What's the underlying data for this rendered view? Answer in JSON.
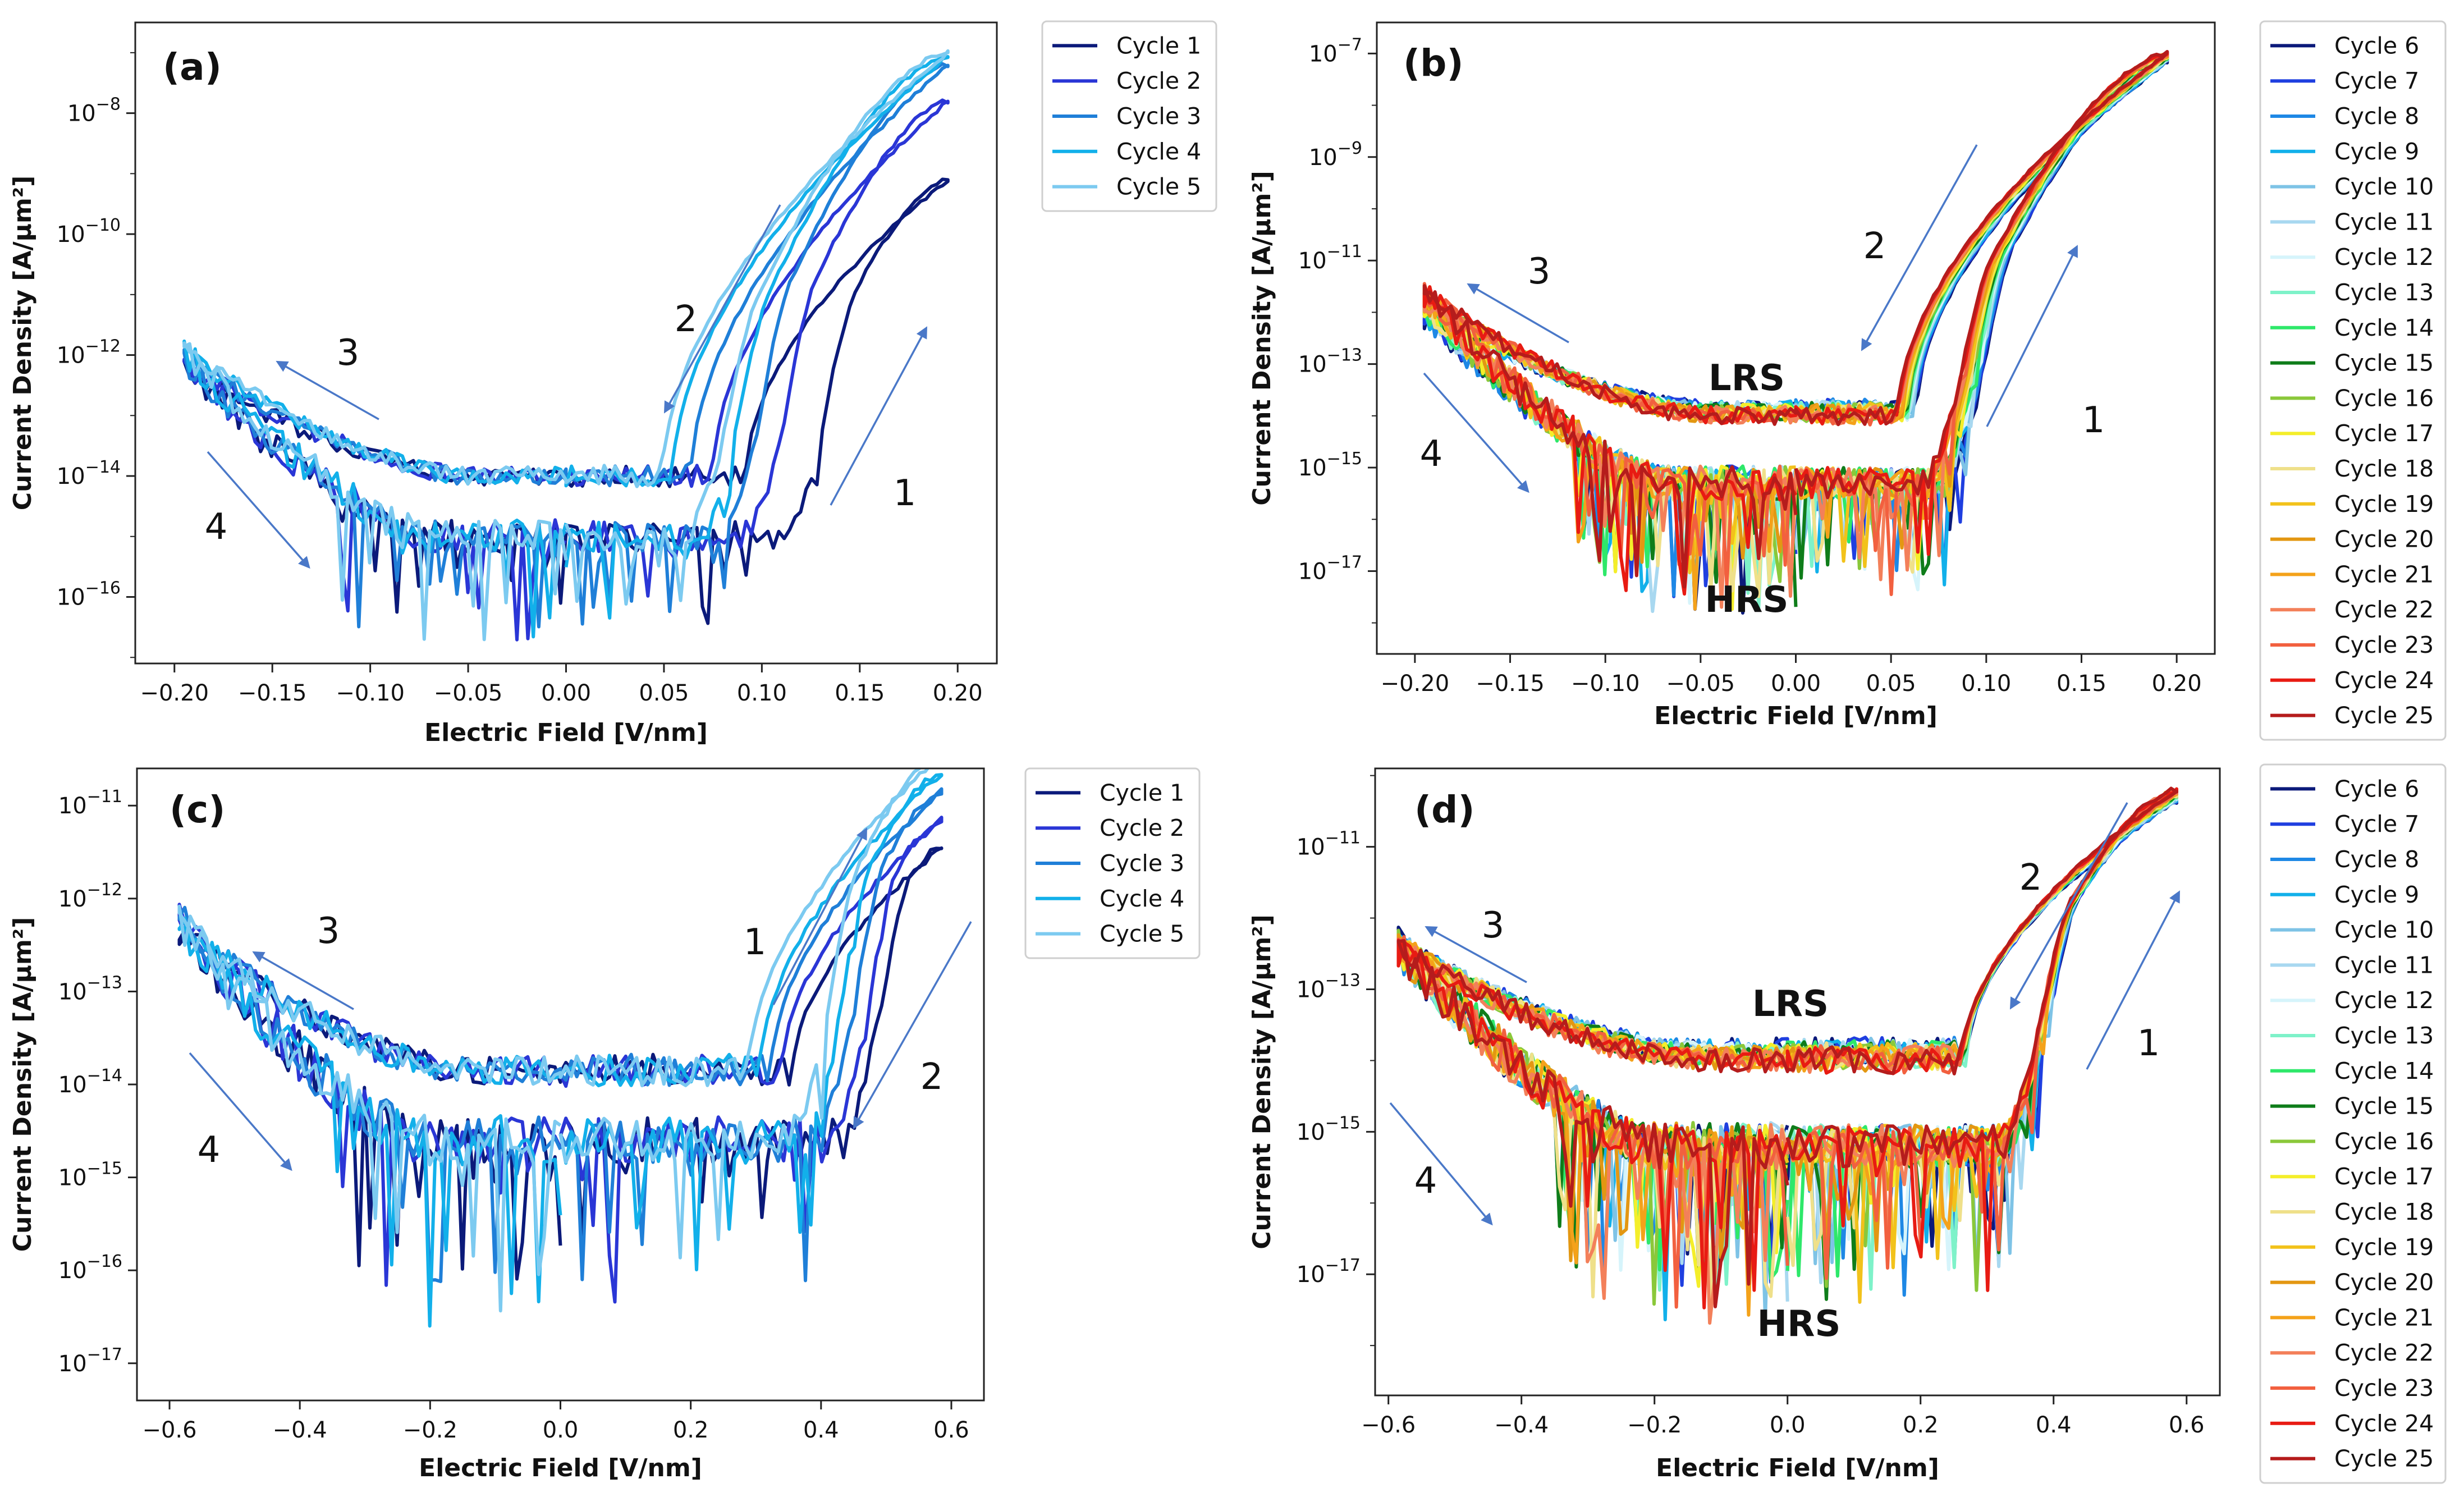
{
  "figure": {
    "colors": {
      "cycles_1_5": [
        "#0b1a7a",
        "#2a36d6",
        "#1f7fd8",
        "#12b0ea",
        "#7ccaf0"
      ],
      "cycles_6_25": [
        "#0b1a7a",
        "#1f3fe0",
        "#1e88e5",
        "#12b0ea",
        "#7ec3e6",
        "#a8d8f0",
        "#d6f4fb",
        "#7ef2c9",
        "#2ee86a",
        "#0f7d1a",
        "#8ac83a",
        "#f4ee2a",
        "#efe08a",
        "#f2c21b",
        "#e39712",
        "#f4a21a",
        "#f3805a",
        "#f2603f",
        "#e81b13",
        "#b51c1c"
      ],
      "arrow": "#4a78c8"
    }
  },
  "chart_data": [
    {
      "id": "a",
      "type": "line",
      "panel_label": "(a)",
      "xlabel": "Electric Field [V/nm]",
      "ylabel": "Current Density [A/μm²]",
      "xlim": [
        -0.22,
        0.22
      ],
      "ylim_log10": [
        -17.1,
        -6.5
      ],
      "yscale": "log",
      "x_ticks": [
        "-0.20",
        "-0.15",
        "-0.10",
        "-0.05",
        "0.00",
        "0.05",
        "0.10",
        "0.15",
        "0.20"
      ],
      "x_tick_values": [
        -0.2,
        -0.15,
        -0.1,
        -0.05,
        0.0,
        0.05,
        0.1,
        0.15,
        0.2
      ],
      "y_tick_exponents": [
        -16,
        -14,
        -12,
        -10,
        -8
      ],
      "legend": [
        "Cycle 1",
        "Cycle 2",
        "Cycle 3",
        "Cycle 4",
        "Cycle 5"
      ],
      "series": [
        {
          "name": "Cycle 1",
          "vmax": 0.195,
          "peak_log10": -9.1,
          "on_field": 0.108,
          "lrs_log10": -14.0,
          "hrs_log10": -15.0,
          "neg_log10": -12.2
        },
        {
          "name": "Cycle 2",
          "vmax": 0.195,
          "peak_log10": -7.8,
          "on_field": 0.088,
          "lrs_log10": -14.0,
          "hrs_log10": -15.0,
          "neg_log10": -12.1
        },
        {
          "name": "Cycle 3",
          "vmax": 0.195,
          "peak_log10": -7.2,
          "on_field": 0.075,
          "lrs_log10": -14.0,
          "hrs_log10": -15.0,
          "neg_log10": -12.05
        },
        {
          "name": "Cycle 4",
          "vmax": 0.195,
          "peak_log10": -7.05,
          "on_field": 0.064,
          "lrs_log10": -14.0,
          "hrs_log10": -15.0,
          "neg_log10": -11.95
        },
        {
          "name": "Cycle 5",
          "vmax": 0.195,
          "peak_log10": -7.0,
          "on_field": 0.058,
          "lrs_log10": -14.0,
          "hrs_log10": -15.0,
          "neg_log10": -11.9
        }
      ],
      "annotations": [
        "1",
        "2",
        "3",
        "4"
      ]
    },
    {
      "id": "b",
      "type": "line",
      "panel_label": "(b)",
      "xlabel": "Electric Field [V/nm]",
      "ylabel": "Current Density [A/μm²]",
      "xlim": [
        -0.22,
        0.22
      ],
      "ylim_log10": [
        -18.6,
        -6.4
      ],
      "yscale": "log",
      "x_ticks": [
        "-0.20",
        "-0.15",
        "-0.10",
        "-0.05",
        "0.00",
        "0.05",
        "0.10",
        "0.15",
        "0.20"
      ],
      "x_tick_values": [
        -0.2,
        -0.15,
        -0.1,
        -0.05,
        0.0,
        0.05,
        0.1,
        0.15,
        0.2
      ],
      "y_tick_exponents": [
        -17,
        -15,
        -13,
        -11,
        -9,
        -7
      ],
      "legend": [
        "Cycle 6",
        "Cycle 7",
        "Cycle 8",
        "Cycle 9",
        "Cycle 10",
        "Cycle 11",
        "Cycle 12",
        "Cycle 13",
        "Cycle 14",
        "Cycle 15",
        "Cycle 16",
        "Cycle 17",
        "Cycle 18",
        "Cycle 19",
        "Cycle 20",
        "Cycle 21",
        "Cycle 22",
        "Cycle 23",
        "Cycle 24",
        "Cycle 25"
      ],
      "summary": {
        "vmax": 0.195,
        "peak_log10": -7.0,
        "set_on_field": 0.055,
        "reset_on_field": 0.075,
        "lrs_log10": -14.0,
        "hrs_log10": -15.3,
        "neg_log10": -11.6,
        "neg_log10_first": -12.0
      },
      "annotations": [
        "1",
        "2",
        "3",
        "4"
      ],
      "state_labels": [
        "LRS",
        "HRS"
      ]
    },
    {
      "id": "c",
      "type": "line",
      "panel_label": "(c)",
      "xlabel": "Electric Field [V/nm]",
      "ylabel": "Current Density [A/μm²]",
      "xlim": [
        -0.65,
        0.65
      ],
      "ylim_log10": [
        -17.4,
        -10.6
      ],
      "yscale": "log",
      "x_ticks": [
        "-0.6",
        "-0.4",
        "-0.2",
        "0.0",
        "0.2",
        "0.4",
        "0.6"
      ],
      "x_tick_values": [
        -0.6,
        -0.4,
        -0.2,
        0.0,
        0.2,
        0.4,
        0.6
      ],
      "y_tick_exponents": [
        -17,
        -16,
        -15,
        -14,
        -13,
        -12,
        -11
      ],
      "legend": [
        "Cycle 1",
        "Cycle 2",
        "Cycle 3",
        "Cycle 4",
        "Cycle 5"
      ],
      "series": [
        {
          "name": "Cycle 1",
          "vmax": 0.585,
          "peak_log10": -11.45,
          "on_field": 0.42,
          "lrs_log10": -13.85,
          "hrs_log10": -14.6,
          "neg_log10": -12.3
        },
        {
          "name": "Cycle 2",
          "vmax": 0.585,
          "peak_log10": -11.15,
          "on_field": 0.4,
          "lrs_log10": -13.85,
          "hrs_log10": -14.6,
          "neg_log10": -12.3
        },
        {
          "name": "Cycle 3",
          "vmax": 0.585,
          "peak_log10": -10.85,
          "on_field": 0.38,
          "lrs_log10": -13.85,
          "hrs_log10": -14.6,
          "neg_log10": -12.3
        },
        {
          "name": "Cycle 4",
          "vmax": 0.585,
          "peak_log10": -10.65,
          "on_field": 0.36,
          "lrs_log10": -13.85,
          "hrs_log10": -14.6,
          "neg_log10": -12.3
        },
        {
          "name": "Cycle 5",
          "vmax": 0.585,
          "peak_log10": -10.45,
          "on_field": 0.34,
          "lrs_log10": -13.85,
          "hrs_log10": -14.6,
          "neg_log10": -12.3
        }
      ],
      "annotations": [
        "1",
        "2",
        "3",
        "4"
      ]
    },
    {
      "id": "d",
      "type": "line",
      "panel_label": "(d)",
      "xlabel": "Electric Field [V/nm]",
      "ylabel": "Current Density [A/μm²]",
      "xlim": [
        -0.62,
        0.65
      ],
      "ylim_log10": [
        -18.7,
        -9.9
      ],
      "yscale": "log",
      "x_ticks": [
        "-0.6",
        "-0.4",
        "-0.2",
        "0.0",
        "0.2",
        "0.4",
        "0.6"
      ],
      "x_tick_values": [
        -0.6,
        -0.4,
        -0.2,
        0.0,
        0.2,
        0.4,
        0.6
      ],
      "y_tick_exponents": [
        -17,
        -15,
        -13,
        -11
      ],
      "legend": [
        "Cycle 6",
        "Cycle 7",
        "Cycle 8",
        "Cycle 9",
        "Cycle 10",
        "Cycle 11",
        "Cycle 12",
        "Cycle 13",
        "Cycle 14",
        "Cycle 15",
        "Cycle 16",
        "Cycle 17",
        "Cycle 18",
        "Cycle 19",
        "Cycle 20",
        "Cycle 21",
        "Cycle 22",
        "Cycle 23",
        "Cycle 24",
        "Cycle 25"
      ],
      "summary": {
        "vmax": 0.585,
        "peak_log10": -10.2,
        "set_on_field": 0.3,
        "reset_on_field": 0.32,
        "lrs_log10": -14.0,
        "hrs_log10": -15.2,
        "neg_log10": -12.4,
        "neg_log10_first": -12.4
      },
      "annotations": [
        "1",
        "2",
        "3",
        "4"
      ],
      "state_labels": [
        "LRS",
        "HRS"
      ]
    }
  ]
}
